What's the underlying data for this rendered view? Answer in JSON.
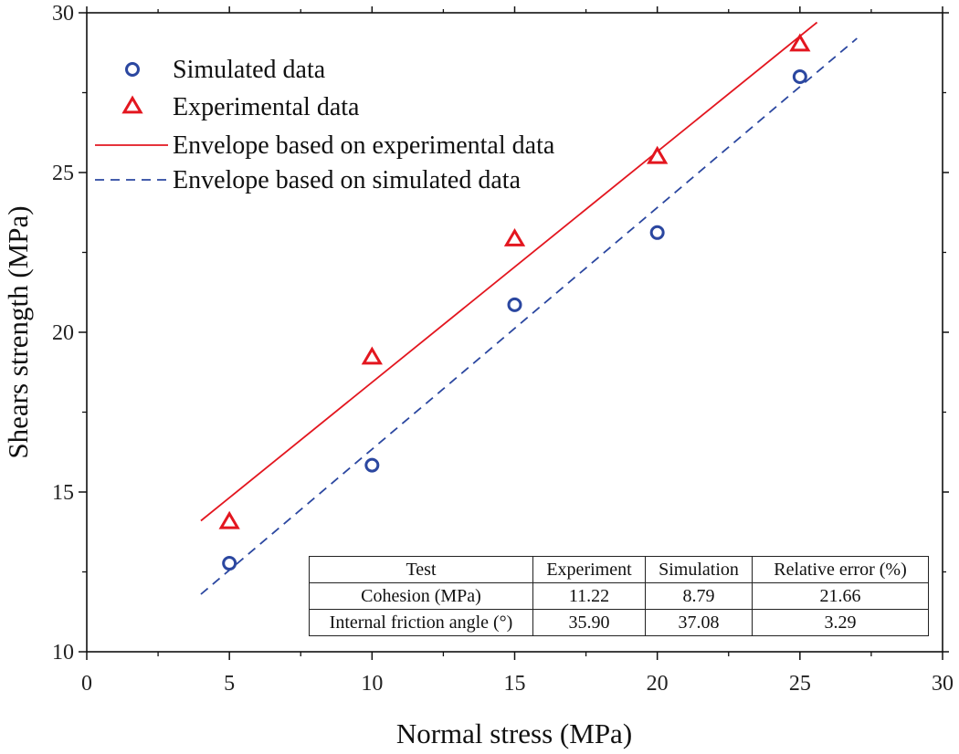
{
  "chart_data": {
    "type": "scatter",
    "xlabel": "Normal stress (MPa)",
    "ylabel": "Shears strength (MPa)",
    "xlim": [
      0,
      30
    ],
    "ylim": [
      10,
      30
    ],
    "x_ticks": [
      "0",
      "5",
      "10",
      "15",
      "20",
      "25",
      "30"
    ],
    "y_ticks": [
      "10",
      "15",
      "20",
      "25",
      "30"
    ],
    "series": [
      {
        "name": "Simulated data",
        "kind": "scatter",
        "marker": "circle",
        "color": "#2b47a0",
        "x": [
          5,
          10,
          15,
          20,
          25
        ],
        "y": [
          12.77,
          15.84,
          20.86,
          23.12,
          28.0
        ]
      },
      {
        "name": "Experimental data",
        "kind": "scatter",
        "marker": "triangle",
        "color": "#e3161f",
        "x": [
          5,
          10,
          15,
          20,
          25
        ],
        "y": [
          14.05,
          19.2,
          22.9,
          25.48,
          29.0
        ]
      },
      {
        "name": "Envelope based on experimental data",
        "kind": "line",
        "style": "solid",
        "color": "#e3161f",
        "x": [
          4,
          25.6
        ],
        "y": [
          14.1,
          29.7
        ]
      },
      {
        "name": "Envelope based on simulated data",
        "kind": "line",
        "style": "dashed",
        "color": "#2b47a0",
        "x": [
          4,
          27
        ],
        "y": [
          11.8,
          29.2
        ]
      }
    ],
    "legend_position": "top-left"
  },
  "table": {
    "headers": [
      "Test",
      "Experiment",
      "Simulation",
      "Relative error (%)"
    ],
    "rows": [
      [
        "Cohesion (MPa)",
        "11.22",
        "8.79",
        "21.66"
      ],
      [
        "Internal friction angle (°)",
        "35.90",
        "37.08",
        "3.29"
      ]
    ]
  }
}
